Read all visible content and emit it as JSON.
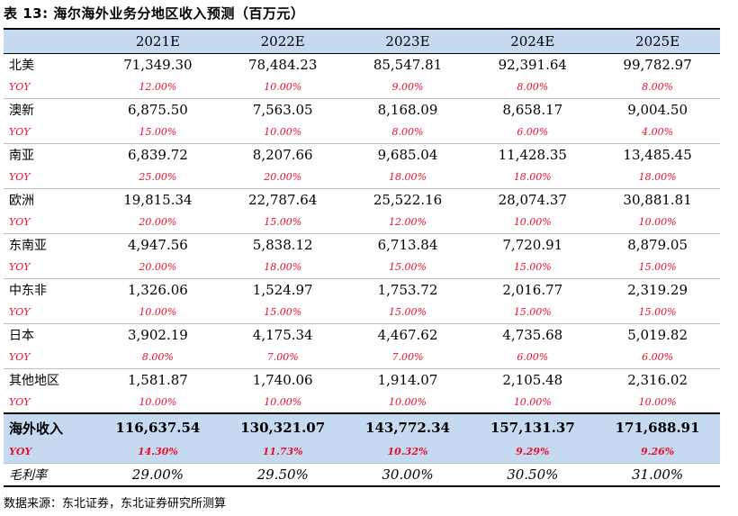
{
  "title": "表 13:  海尔海外业务分地区收入预测（百万元）",
  "headers": [
    "",
    "2021E",
    "2022E",
    "2023E",
    "2024E",
    "2025E"
  ],
  "regions": [
    {
      "name": "北美",
      "values": [
        "71,349.30",
        "78,484.23",
        "85,547.81",
        "92,391.64",
        "99,782.97"
      ],
      "yoy_label": "YOY",
      "yoy": [
        "12.00%",
        "10.00%",
        "9.00%",
        "8.00%",
        "8.00%"
      ]
    },
    {
      "name": "澳新",
      "values": [
        "6,875.50",
        "7,563.05",
        "8,168.09",
        "8,658.17",
        "9,004.50"
      ],
      "yoy_label": "YOY",
      "yoy": [
        "15.00%",
        "10.00%",
        "8.00%",
        "6.00%",
        "4.00%"
      ]
    },
    {
      "name": "南亚",
      "values": [
        "6,839.72",
        "8,207.66",
        "9,685.04",
        "11,428.35",
        "13,485.45"
      ],
      "yoy_label": "YOY",
      "yoy": [
        "25.00%",
        "20.00%",
        "18.00%",
        "18.00%",
        "18.00%"
      ]
    },
    {
      "name": "欧洲",
      "values": [
        "19,815.34",
        "22,787.64",
        "25,522.16",
        "28,074.37",
        "30,881.81"
      ],
      "yoy_label": "YOY",
      "yoy": [
        "20.00%",
        "15.00%",
        "12.00%",
        "10.00%",
        "10.00%"
      ]
    },
    {
      "name": "东南亚",
      "values": [
        "4,947.56",
        "5,838.12",
        "6,713.84",
        "7,720.91",
        "8,879.05"
      ],
      "yoy_label": "YOY",
      "yoy": [
        "20.00%",
        "18.00%",
        "15.00%",
        "15.00%",
        "15.00%"
      ]
    },
    {
      "name": "中东非",
      "values": [
        "1,326.06",
        "1,524.97",
        "1,753.72",
        "2,016.77",
        "2,319.29"
      ],
      "yoy_label": "YOY",
      "yoy": [
        "10.00%",
        "15.00%",
        "15.00%",
        "15.00%",
        "15.00%"
      ]
    },
    {
      "name": "日本",
      "values": [
        "3,902.19",
        "4,175.34",
        "4,467.62",
        "4,735.68",
        "5,019.82"
      ],
      "yoy_label": "YOY",
      "yoy": [
        "8.00%",
        "7.00%",
        "7.00%",
        "6.00%",
        "6.00%"
      ]
    },
    {
      "name": "其他地区",
      "values": [
        "1,581.87",
        "1,740.06",
        "1,914.07",
        "2,105.48",
        "2,316.02"
      ],
      "yoy_label": "YOY",
      "yoy": [
        "10.00%",
        "10.00%",
        "10.00%",
        "10.00%",
        "10.00%"
      ]
    }
  ],
  "total": {
    "name": "海外收入",
    "values": [
      "116,637.54",
      "130,321.07",
      "143,772.34",
      "157,131.37",
      "171,688.91"
    ],
    "yoy_label": "YOY",
    "yoy": [
      "14.30%",
      "11.73%",
      "10.32%",
      "9.29%",
      "9.26%"
    ]
  },
  "margin": {
    "name": "毛利率",
    "values": [
      "29.00%",
      "29.50%",
      "30.00%",
      "30.50%",
      "31.00%"
    ]
  },
  "source": "数据来源：东北证券，东北证券研究所测算",
  "colors": {
    "header_bg": "#c5d9f1",
    "yoy_text": "#e8102a"
  }
}
